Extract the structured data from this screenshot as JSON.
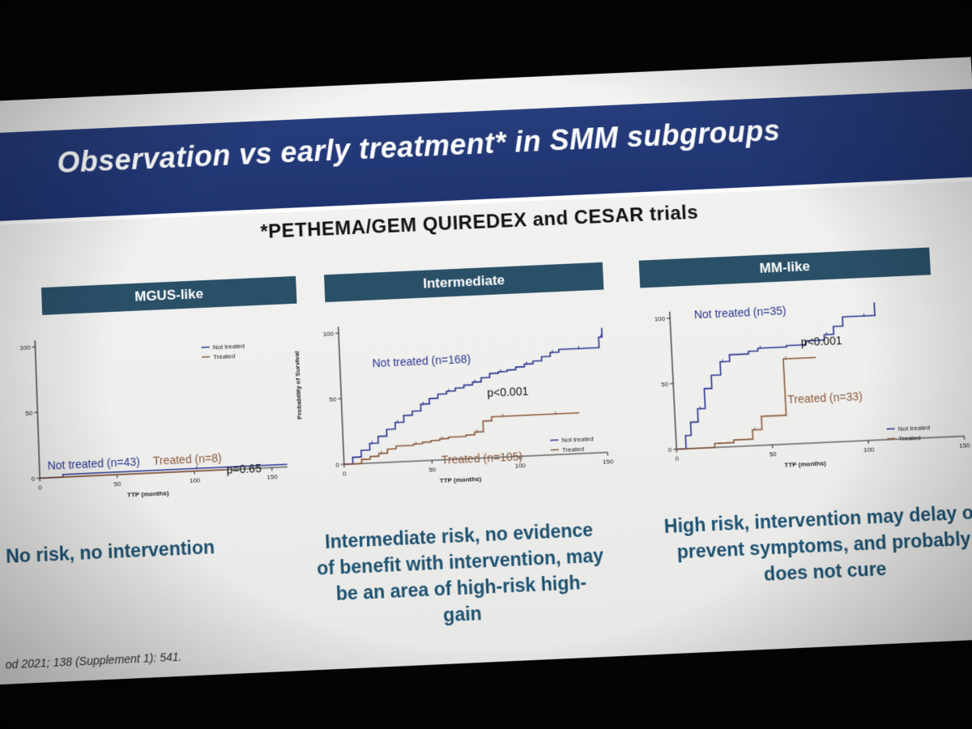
{
  "slide": {
    "title": "Observation vs early treatment* in SMM subgroups",
    "subtitle": "*PETHEMA/GEM QUIREDEX and CESAR trials",
    "footer": "od 2021; 138 (Supplement 1): 541.",
    "colors": {
      "band": "#273d7c",
      "panel_header": "#2a5068",
      "not_treated": "#2b3590",
      "treated": "#8a5a3c",
      "caption": "#1d5170"
    }
  },
  "chart_data": [
    {
      "type": "line",
      "title": "MGUS-like",
      "xlabel": "TTP (months)",
      "ylabel": "Probability of Survival",
      "xlim": [
        0,
        160
      ],
      "ylim": [
        0,
        105
      ],
      "xticks": [
        0,
        50,
        100,
        150
      ],
      "yticks": [
        0,
        50,
        100
      ],
      "legend": {
        "placement": "top-right",
        "entries": [
          "Not treated",
          "Treated"
        ]
      },
      "annotations": {
        "not_treated": "Not treated (n=43)",
        "treated": "Treated (n=8)",
        "pvalue": "p=0.65"
      },
      "series": [
        {
          "name": "Not treated",
          "x": [
            0,
            15,
            50,
            100,
            160
          ],
          "y": [
            0,
            2,
            2,
            2,
            2
          ]
        },
        {
          "name": "Treated",
          "x": [
            0,
            20,
            120
          ],
          "y": [
            0,
            0,
            0
          ]
        }
      ]
    },
    {
      "type": "line",
      "title": "Intermediate",
      "xlabel": "TTP (months)",
      "ylabel": "",
      "xlim": [
        0,
        150
      ],
      "ylim": [
        0,
        105
      ],
      "xticks": [
        0,
        50,
        100,
        150
      ],
      "yticks": [
        0,
        50,
        100
      ],
      "legend": {
        "placement": "bottom-right",
        "entries": [
          "Not treated",
          "Treated"
        ]
      },
      "annotations": {
        "not_treated": "Not treated (n=168)",
        "treated": "Treated (n=105)",
        "pvalue": "p<0.001"
      },
      "series": [
        {
          "name": "Not treated",
          "x": [
            0,
            5,
            10,
            15,
            20,
            25,
            30,
            35,
            40,
            45,
            50,
            55,
            60,
            65,
            70,
            75,
            80,
            85,
            90,
            95,
            100,
            105,
            110,
            115,
            120,
            125,
            130,
            135,
            140,
            145,
            148,
            150
          ],
          "y": [
            0,
            5,
            10,
            15,
            20,
            25,
            30,
            35,
            38,
            43,
            47,
            50,
            52,
            54,
            56,
            58,
            61,
            64,
            65,
            66,
            68,
            70,
            72,
            75,
            78,
            80,
            80,
            80,
            80,
            80,
            88,
            95
          ]
        },
        {
          "name": "Treated",
          "x": [
            0,
            10,
            15,
            20,
            25,
            30,
            40,
            45,
            50,
            55,
            60,
            70,
            75,
            80,
            85,
            90,
            100,
            110,
            120,
            130,
            135
          ],
          "y": [
            0,
            3,
            5,
            7,
            10,
            12,
            13,
            14,
            15,
            16,
            17,
            18,
            20,
            28,
            31,
            31,
            31,
            31,
            31,
            31,
            31
          ]
        }
      ]
    },
    {
      "type": "line",
      "title": "MM-like",
      "xlabel": "TTP (months)",
      "ylabel": "",
      "xlim": [
        0,
        150
      ],
      "ylim": [
        0,
        105
      ],
      "xticks": [
        0,
        50,
        100,
        150
      ],
      "yticks": [
        0,
        50,
        100
      ],
      "legend": {
        "placement": "bottom-right",
        "entries": [
          "Not treated",
          "Treated"
        ]
      },
      "annotations": {
        "not_treated": "Not treated (n=35)",
        "treated": "Treated (n=33)",
        "pvalue": "p<0.001"
      },
      "series": [
        {
          "name": "Not treated",
          "x": [
            0,
            5,
            8,
            12,
            16,
            20,
            25,
            30,
            40,
            45,
            60,
            70,
            80,
            85,
            90,
            100,
            105,
            107
          ],
          "y": [
            0,
            10,
            20,
            30,
            45,
            55,
            65,
            70,
            72,
            74,
            75,
            78,
            82,
            88,
            95,
            95,
            95,
            105
          ]
        },
        {
          "name": "Treated",
          "x": [
            0,
            20,
            30,
            40,
            45,
            55,
            58,
            65,
            75
          ],
          "y": [
            0,
            3,
            5,
            12,
            22,
            22,
            65,
            65,
            65
          ]
        }
      ]
    }
  ],
  "captions": [
    "No risk, no intervention",
    "Intermediate risk, no evidence of benefit with intervention, may be an area of high-risk high-gain",
    "High risk, intervention may delay or prevent symptoms, and probably does not cure"
  ]
}
